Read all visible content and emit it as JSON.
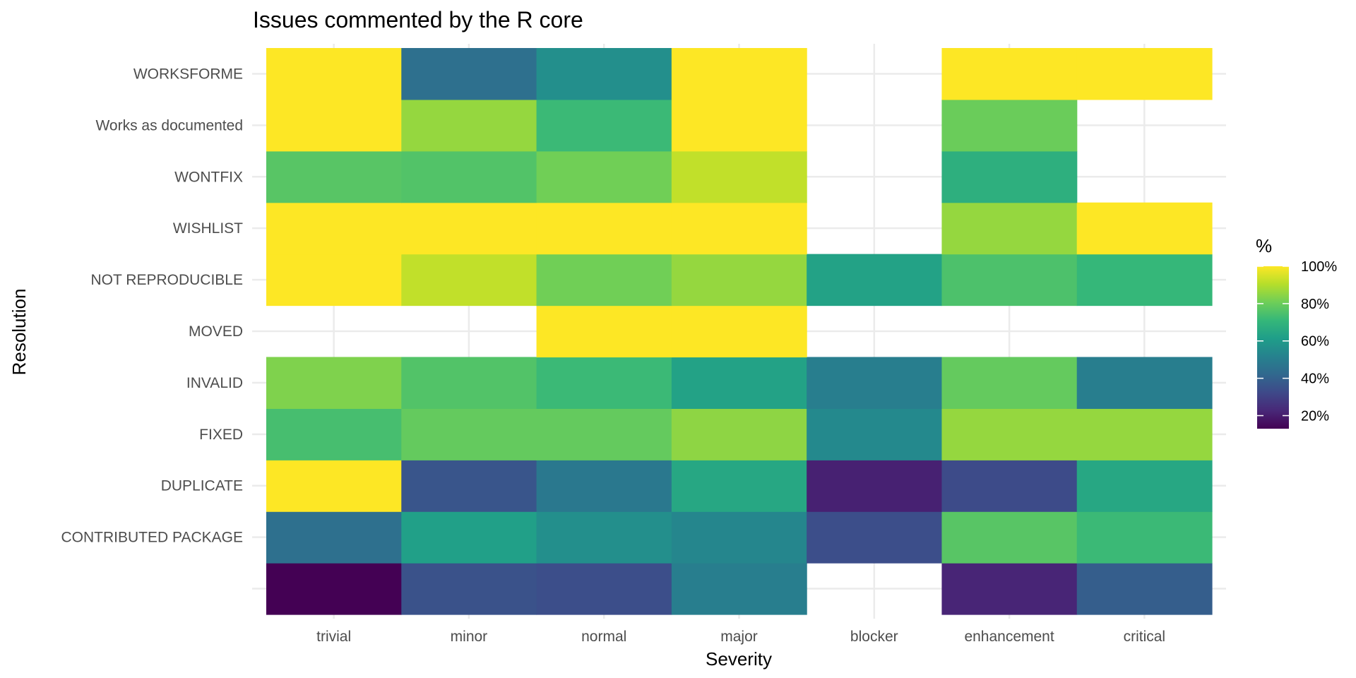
{
  "chart_data": {
    "type": "heatmap",
    "title": "Issues commented by the R core",
    "xlabel": "Severity",
    "ylabel": "Resolution",
    "x_categories": [
      "trivial",
      "minor",
      "normal",
      "major",
      "blocker",
      "enhancement",
      "critical"
    ],
    "y_categories": [
      "",
      "CONTRIBUTED PACKAGE",
      "DUPLICATE",
      "FIXED",
      "INVALID",
      "MOVED",
      "NOT REPRODUCIBLE",
      "WISHLIST",
      "WONTFIX",
      "Works as documented",
      "WORKSFORME"
    ],
    "values": [
      [
        13,
        35,
        34,
        50,
        null,
        22,
        39
      ],
      [
        45,
        62,
        56,
        53,
        34,
        77,
        72
      ],
      [
        100,
        36,
        48,
        65,
        21,
        33,
        65
      ],
      [
        74,
        79,
        79,
        85,
        54,
        86,
        86
      ],
      [
        83,
        76,
        72,
        63,
        50,
        79,
        50
      ],
      [
        null,
        null,
        100,
        100,
        null,
        null,
        null
      ],
      [
        100,
        92,
        81,
        86,
        63,
        75,
        71
      ],
      [
        100,
        100,
        100,
        100,
        null,
        86,
        100
      ],
      [
        77,
        76,
        81,
        92,
        null,
        68,
        null
      ],
      [
        100,
        86,
        72,
        100,
        null,
        80,
        null
      ],
      [
        100,
        45,
        56,
        100,
        null,
        100,
        100
      ]
    ],
    "colorbar": {
      "title": "%",
      "min": 13,
      "max": 100,
      "ticks": [
        20,
        40,
        60,
        80,
        100
      ],
      "tick_labels": [
        "20%",
        "40%",
        "60%",
        "80%",
        "100%"
      ],
      "colormap": "viridis",
      "colors": [
        "#440154",
        "#482878",
        "#3e4989",
        "#31688e",
        "#26828e",
        "#1f9e89",
        "#35b779",
        "#6ece58",
        "#b5de2b",
        "#fde725"
      ]
    },
    "grid": true,
    "legend_position": "right"
  }
}
